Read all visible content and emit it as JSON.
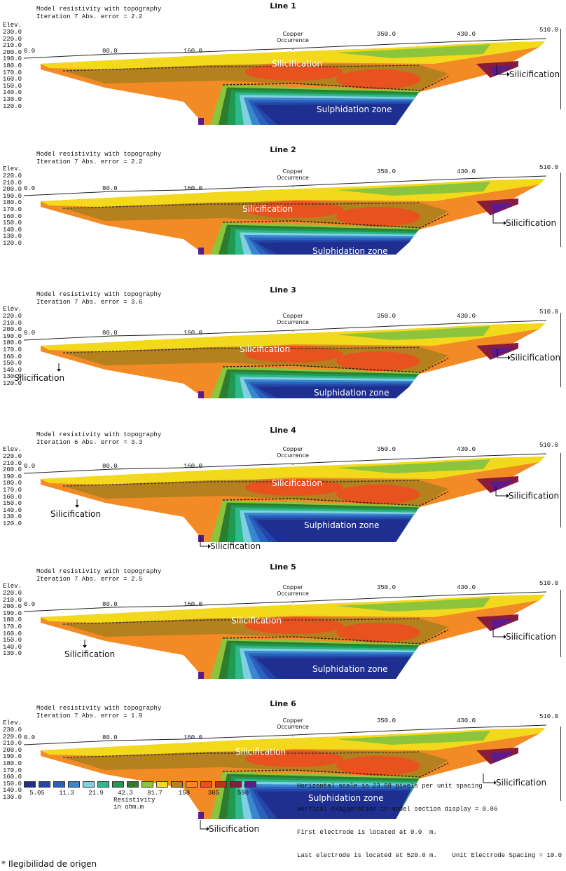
{
  "chart_data": [
    {
      "type": "heatmap",
      "title": "Line 1",
      "header": [
        "Model resistivity with topography",
        "Iteration 7 Abs. error = 2.2"
      ],
      "ylabel": "Elev.",
      "y_ticks": [
        "230.0",
        "220.0",
        "210.0",
        "200.0",
        "190.0",
        "180.0",
        "170.0",
        "160.0",
        "150.0",
        "140.0",
        "130.0",
        "120.0"
      ],
      "x_ticks": [
        "0.0",
        "80.0",
        "160.0",
        "350.0",
        "430.0",
        "510.0"
      ],
      "annotations": [
        "Copper Occurrence",
        "Silicification",
        "Silicification",
        "Sulphidation zone"
      ]
    },
    {
      "type": "heatmap",
      "title": "Line 2",
      "header": [
        "Model resistivity with topography",
        "Iteration 7 Abs. error = 2.2"
      ],
      "ylabel": "Elev.",
      "y_ticks": [
        "220.0",
        "210.0",
        "200.0",
        "190.0",
        "180.0",
        "170.0",
        "160.0",
        "150.0",
        "140.0",
        "130.0",
        "120.0"
      ],
      "x_ticks": [
        "0.0",
        "80.0",
        "160.0",
        "350.0",
        "430.0",
        "510.0"
      ],
      "annotations": [
        "Copper Occurrence",
        "Silicification",
        "Silicification",
        "Sulphidation zone"
      ]
    },
    {
      "type": "heatmap",
      "title": "Line 3",
      "header": [
        "Model resistivity with topography",
        "Iteration 7 Abs. error = 3.6"
      ],
      "ylabel": "Elev.",
      "y_ticks": [
        "220.0",
        "210.0",
        "200.0",
        "190.0",
        "180.0",
        "170.0",
        "160.0",
        "150.0",
        "140.0",
        "130.0",
        "120.0"
      ],
      "x_ticks": [
        "0.0",
        "80.0",
        "160.0",
        "350.0",
        "430.0",
        "510.0"
      ],
      "annotations": [
        "Copper Occurrence",
        "Silicification",
        "Silicification",
        "Silicification",
        "Sulphidation zone"
      ]
    },
    {
      "type": "heatmap",
      "title": "Line 4",
      "header": [
        "Model resistivity with topography",
        "Iteration 6 Abs. error = 3.3"
      ],
      "ylabel": "Elev.",
      "y_ticks": [
        "220.0",
        "210.0",
        "200.0",
        "190.0",
        "180.0",
        "170.0",
        "160.0",
        "150.0",
        "140.0",
        "130.0",
        "120.0"
      ],
      "x_ticks": [
        "0.0",
        "80.0",
        "160.0",
        "350.0",
        "430.0",
        "510.0"
      ],
      "annotations": [
        "Copper Occurrence",
        "Silicification",
        "Silicification",
        "Silicification",
        "Silicification",
        "Sulphidation zone"
      ]
    },
    {
      "type": "heatmap",
      "title": "Line 5",
      "header": [
        "Model resistivity with topography",
        "Iteration 7 Abs. error = 2.5"
      ],
      "ylabel": "Elev.",
      "y_ticks": [
        "220.0",
        "210.0",
        "200.0",
        "190.0",
        "180.0",
        "170.0",
        "160.0",
        "150.0",
        "140.0",
        "130.0"
      ],
      "x_ticks": [
        "0.0",
        "80.0",
        "160.0",
        "350.0",
        "430.0",
        "510.0"
      ],
      "annotations": [
        "Copper Occurrence",
        "Silicification",
        "Silicification",
        "Silicification",
        "Sulphidation zone"
      ]
    },
    {
      "type": "heatmap",
      "title": "Line 6",
      "header": [
        "Model resistivity with topography",
        "Iteration 7 Abs. error = 1.9"
      ],
      "ylabel": "Elev.",
      "y_ticks": [
        "230.0",
        "220.0",
        "210.0",
        "200.0",
        "190.0",
        "180.0",
        "170.0",
        "160.0",
        "150.0",
        "140.0",
        "130.0"
      ],
      "x_ticks": [
        "0.0",
        "80.0",
        "160.0",
        "350.0",
        "430.0",
        "510.0"
      ],
      "annotations": [
        "Copper Occurrence",
        "Silicification",
        "Silicification",
        "Silicification",
        "Sulphidation zone"
      ]
    }
  ],
  "legend": {
    "title": "Resistivity in ohm.m",
    "values": [
      "5.05",
      "11.3",
      "21.9",
      "42.3",
      "81.7",
      "158",
      "305",
      "590"
    ],
    "colors": [
      "#1f2f8f",
      "#2446a8",
      "#2a61bd",
      "#3a86cf",
      "#7fd0e0",
      "#2fb88c",
      "#1f9a52",
      "#2e7d2e",
      "#8cc43c",
      "#f2d91c",
      "#b5801e",
      "#f28a25",
      "#e8521f",
      "#c0301d",
      "#8a1c3b",
      "#5b1b8c"
    ]
  },
  "info": [
    "Horizontal scale is 23.08 pixels per unit spacing",
    "Vertical exaggeration in model section display = 0.86",
    "First electrode is located at 0.0  m.",
    "Last electrode is located at 520.0 m.    Unit Electrode Spacing = 10.0 m."
  ],
  "footnote": "* Ilegibilidad de origen"
}
